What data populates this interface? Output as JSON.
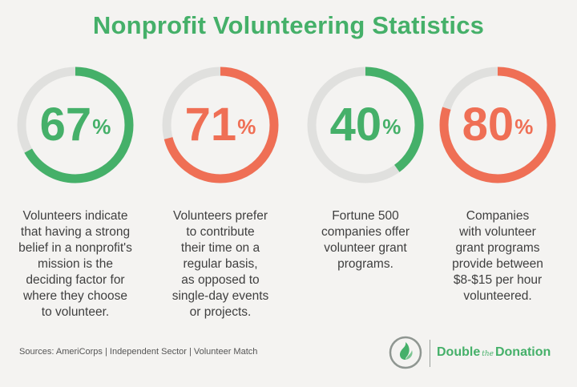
{
  "title": "Nonprofit Volunteering Statistics",
  "colors": {
    "green": "#45b069",
    "orange": "#ef6f55",
    "track": "#e0e0de",
    "text": "#3f3f3f"
  },
  "stats": [
    {
      "value": "67",
      "symbol": "%",
      "fraction": 0.67,
      "color": "green",
      "description": "Volunteers indicate\nthat having a strong\nbelief in a nonprofit's\nmission is the\ndeciding factor for\nwhere they choose\nto volunteer."
    },
    {
      "value": "71",
      "symbol": "%",
      "fraction": 0.71,
      "color": "orange",
      "description": "Volunteers prefer\nto contribute\ntheir time on a\nregular basis,\nas opposed to\nsingle-day events\nor projects."
    },
    {
      "value": "40",
      "symbol": "%",
      "fraction": 0.4,
      "color": "green",
      "description": "Fortune 500\ncompanies offer\nvolunteer grant\nprograms."
    },
    {
      "value": "80",
      "symbol": "%",
      "fraction": 0.8,
      "color": "orange",
      "description": "Companies\nwith volunteer\ngrant programs\nprovide between\n$8-$15 per hour\nvolunteered."
    }
  ],
  "sources": "Sources: AmeriCorps | Independent Sector | Volunteer Match",
  "logo": {
    "word1": "Double",
    "word2": "the",
    "word3": "Donation"
  }
}
